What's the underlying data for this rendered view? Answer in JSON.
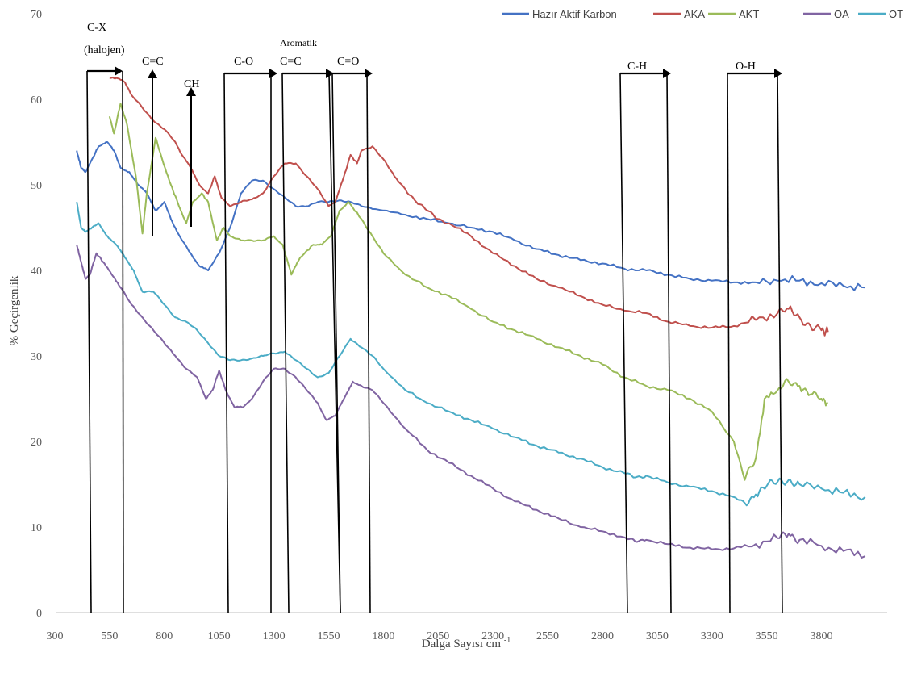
{
  "chart_data": {
    "type": "line",
    "xlabel": "Dalga Sayısı cm-1",
    "xlabel_main": "Dalga Sayısı cm",
    "xlabel_sup": "-1",
    "ylabel": "% Geçirgenlik",
    "xlim": [
      300,
      4100
    ],
    "ylim": [
      0,
      70
    ],
    "x_ticks": [
      300,
      550,
      800,
      1050,
      1300,
      1550,
      1800,
      2050,
      2300,
      2550,
      2800,
      3050,
      3300,
      3550,
      3800
    ],
    "y_ticks": [
      0,
      10,
      20,
      30,
      40,
      50,
      60,
      70
    ],
    "grid": false,
    "legend_position": "top-right",
    "series": [
      {
        "name": "Hazır Aktif Karbon",
        "color": "#4472C4",
        "points": [
          [
            400,
            54
          ],
          [
            420,
            52
          ],
          [
            440,
            51.5
          ],
          [
            470,
            53
          ],
          [
            500,
            54.5
          ],
          [
            540,
            55
          ],
          [
            570,
            54
          ],
          [
            600,
            52
          ],
          [
            640,
            51.5
          ],
          [
            680,
            50
          ],
          [
            720,
            49
          ],
          [
            760,
            47
          ],
          [
            800,
            48
          ],
          [
            830,
            46
          ],
          [
            870,
            44
          ],
          [
            920,
            42
          ],
          [
            960,
            40.5
          ],
          [
            1000,
            40
          ],
          [
            1050,
            42
          ],
          [
            1100,
            45
          ],
          [
            1150,
            49
          ],
          [
            1200,
            50.5
          ],
          [
            1250,
            50.5
          ],
          [
            1300,
            49.5
          ],
          [
            1350,
            48.5
          ],
          [
            1400,
            47.5
          ],
          [
            1450,
            47.5
          ],
          [
            1500,
            48
          ],
          [
            1550,
            48
          ],
          [
            1600,
            48.2
          ],
          [
            1650,
            48
          ],
          [
            1700,
            47.5
          ],
          [
            1800,
            47
          ],
          [
            1900,
            46.5
          ],
          [
            2000,
            46
          ],
          [
            2100,
            45.5
          ],
          [
            2200,
            45
          ],
          [
            2300,
            44.5
          ],
          [
            2400,
            43.5
          ],
          [
            2500,
            42.5
          ],
          [
            2600,
            41.8
          ],
          [
            2700,
            41.2
          ],
          [
            2800,
            40.8
          ],
          [
            2900,
            40.2
          ],
          [
            3000,
            40
          ],
          [
            3100,
            39.5
          ],
          [
            3200,
            39
          ],
          [
            3300,
            38.8
          ],
          [
            3400,
            38.6
          ],
          [
            3500,
            38.6
          ],
          [
            3600,
            38.8
          ],
          [
            3700,
            38.8
          ],
          [
            3800,
            38.5
          ],
          [
            3900,
            38.2
          ],
          [
            4000,
            38
          ]
        ]
      },
      {
        "name": "AKA",
        "color": "#C0504D",
        "points": [
          [
            550,
            62.5
          ],
          [
            580,
            62.5
          ],
          [
            620,
            62
          ],
          [
            650,
            60.5
          ],
          [
            700,
            59
          ],
          [
            750,
            57.5
          ],
          [
            800,
            56.5
          ],
          [
            850,
            55
          ],
          [
            880,
            53.5
          ],
          [
            920,
            52
          ],
          [
            960,
            50
          ],
          [
            1000,
            49
          ],
          [
            1030,
            51
          ],
          [
            1060,
            48.5
          ],
          [
            1100,
            47.5
          ],
          [
            1150,
            48
          ],
          [
            1200,
            48.3
          ],
          [
            1250,
            49
          ],
          [
            1300,
            51
          ],
          [
            1350,
            52.5
          ],
          [
            1400,
            52.5
          ],
          [
            1450,
            51
          ],
          [
            1500,
            49.5
          ],
          [
            1550,
            47.5
          ],
          [
            1580,
            48
          ],
          [
            1620,
            51
          ],
          [
            1650,
            53.5
          ],
          [
            1680,
            52.5
          ],
          [
            1700,
            54
          ],
          [
            1750,
            54.5
          ],
          [
            1800,
            53
          ],
          [
            1850,
            51
          ],
          [
            1900,
            49.5
          ],
          [
            1950,
            48
          ],
          [
            2000,
            47
          ],
          [
            2050,
            46
          ],
          [
            2100,
            45.5
          ],
          [
            2200,
            44
          ],
          [
            2300,
            42
          ],
          [
            2400,
            40.5
          ],
          [
            2500,
            39
          ],
          [
            2600,
            38
          ],
          [
            2700,
            37
          ],
          [
            2800,
            36
          ],
          [
            2900,
            35.3
          ],
          [
            3000,
            35
          ],
          [
            3100,
            34
          ],
          [
            3200,
            33.5
          ],
          [
            3300,
            33.3
          ],
          [
            3400,
            33.5
          ],
          [
            3500,
            34.2
          ],
          [
            3600,
            35
          ],
          [
            3650,
            35.5
          ],
          [
            3700,
            34.5
          ],
          [
            3750,
            33.5
          ],
          [
            3800,
            33
          ],
          [
            3830,
            32.8
          ]
        ]
      },
      {
        "name": "AKT",
        "color": "#9BBB59",
        "points": [
          [
            550,
            58
          ],
          [
            570,
            56
          ],
          [
            600,
            59.5
          ],
          [
            630,
            57
          ],
          [
            670,
            51
          ],
          [
            700,
            44.3
          ],
          [
            720,
            49
          ],
          [
            760,
            55.5
          ],
          [
            790,
            53
          ],
          [
            830,
            50
          ],
          [
            860,
            48
          ],
          [
            900,
            45.5
          ],
          [
            930,
            48
          ],
          [
            970,
            49
          ],
          [
            1000,
            48
          ],
          [
            1040,
            43.5
          ],
          [
            1070,
            45
          ],
          [
            1100,
            44
          ],
          [
            1150,
            43.5
          ],
          [
            1200,
            43.5
          ],
          [
            1250,
            43.5
          ],
          [
            1300,
            44
          ],
          [
            1340,
            43
          ],
          [
            1380,
            39.5
          ],
          [
            1420,
            41.5
          ],
          [
            1480,
            43
          ],
          [
            1520,
            43
          ],
          [
            1560,
            44
          ],
          [
            1600,
            47
          ],
          [
            1640,
            48
          ],
          [
            1700,
            46
          ],
          [
            1750,
            44
          ],
          [
            1800,
            42
          ],
          [
            1900,
            39.5
          ],
          [
            2000,
            38
          ],
          [
            2100,
            37
          ],
          [
            2200,
            35.5
          ],
          [
            2300,
            34
          ],
          [
            2400,
            33
          ],
          [
            2500,
            32
          ],
          [
            2600,
            31
          ],
          [
            2700,
            30
          ],
          [
            2800,
            29
          ],
          [
            2900,
            27.5
          ],
          [
            3000,
            26.5
          ],
          [
            3100,
            26
          ],
          [
            3200,
            25
          ],
          [
            3300,
            23.5
          ],
          [
            3400,
            20
          ],
          [
            3450,
            15.5
          ],
          [
            3500,
            18
          ],
          [
            3540,
            25
          ],
          [
            3600,
            26
          ],
          [
            3650,
            27
          ],
          [
            3700,
            26.5
          ],
          [
            3750,
            25.5
          ],
          [
            3800,
            25
          ],
          [
            3830,
            24.5
          ]
        ]
      },
      {
        "name": "OA",
        "color": "#8064A2",
        "points": [
          [
            400,
            43
          ],
          [
            420,
            41
          ],
          [
            440,
            39
          ],
          [
            460,
            39.5
          ],
          [
            490,
            42
          ],
          [
            520,
            41
          ],
          [
            560,
            39.5
          ],
          [
            600,
            38
          ],
          [
            650,
            36
          ],
          [
            700,
            34.5
          ],
          [
            750,
            33
          ],
          [
            800,
            31.5
          ],
          [
            850,
            30
          ],
          [
            900,
            28.5
          ],
          [
            950,
            27.5
          ],
          [
            990,
            25
          ],
          [
            1020,
            26
          ],
          [
            1050,
            28.3
          ],
          [
            1080,
            26
          ],
          [
            1120,
            24
          ],
          [
            1160,
            24
          ],
          [
            1200,
            25
          ],
          [
            1250,
            27
          ],
          [
            1300,
            28.5
          ],
          [
            1350,
            28.5
          ],
          [
            1400,
            27.5
          ],
          [
            1450,
            26
          ],
          [
            1500,
            24.5
          ],
          [
            1540,
            22.5
          ],
          [
            1580,
            23
          ],
          [
            1620,
            25
          ],
          [
            1660,
            27
          ],
          [
            1700,
            26.5
          ],
          [
            1750,
            26
          ],
          [
            1800,
            24.5
          ],
          [
            1900,
            21.5
          ],
          [
            2000,
            19
          ],
          [
            2100,
            17.5
          ],
          [
            2200,
            16
          ],
          [
            2300,
            14.5
          ],
          [
            2400,
            13
          ],
          [
            2500,
            12
          ],
          [
            2600,
            11
          ],
          [
            2700,
            10
          ],
          [
            2800,
            9.5
          ],
          [
            2900,
            8.8
          ],
          [
            2950,
            8.3
          ],
          [
            3000,
            8.5
          ],
          [
            3100,
            8
          ],
          [
            3200,
            7.6
          ],
          [
            3300,
            7.4
          ],
          [
            3400,
            7.5
          ],
          [
            3500,
            8
          ],
          [
            3600,
            8.7
          ],
          [
            3650,
            9.2
          ],
          [
            3700,
            8.5
          ],
          [
            3800,
            7.8
          ],
          [
            3900,
            7.2
          ],
          [
            4000,
            6.6
          ]
        ]
      },
      {
        "name": "OT",
        "color": "#4BACC6",
        "points": [
          [
            400,
            48
          ],
          [
            420,
            45
          ],
          [
            440,
            44.5
          ],
          [
            470,
            45
          ],
          [
            500,
            45.5
          ],
          [
            540,
            44
          ],
          [
            580,
            43
          ],
          [
            620,
            41.5
          ],
          [
            660,
            40
          ],
          [
            700,
            37.5
          ],
          [
            750,
            37.5
          ],
          [
            800,
            36
          ],
          [
            850,
            34.5
          ],
          [
            900,
            34
          ],
          [
            950,
            33
          ],
          [
            1000,
            31.5
          ],
          [
            1050,
            30
          ],
          [
            1100,
            29.5
          ],
          [
            1150,
            29.5
          ],
          [
            1200,
            29.7
          ],
          [
            1250,
            30
          ],
          [
            1300,
            30.3
          ],
          [
            1350,
            30.5
          ],
          [
            1400,
            29.5
          ],
          [
            1450,
            28.5
          ],
          [
            1500,
            27.5
          ],
          [
            1550,
            28
          ],
          [
            1600,
            30
          ],
          [
            1650,
            32
          ],
          [
            1700,
            31
          ],
          [
            1750,
            30
          ],
          [
            1800,
            28.5
          ],
          [
            1900,
            26
          ],
          [
            2000,
            24.5
          ],
          [
            2100,
            23.5
          ],
          [
            2200,
            22.5
          ],
          [
            2300,
            21.5
          ],
          [
            2400,
            20.5
          ],
          [
            2500,
            19.5
          ],
          [
            2600,
            18.7
          ],
          [
            2700,
            18
          ],
          [
            2800,
            17
          ],
          [
            2900,
            16.3
          ],
          [
            2950,
            15.8
          ],
          [
            3000,
            16
          ],
          [
            3100,
            15.2
          ],
          [
            3200,
            14.7
          ],
          [
            3300,
            14.2
          ],
          [
            3400,
            13.5
          ],
          [
            3450,
            12.8
          ],
          [
            3500,
            13.8
          ],
          [
            3550,
            14.8
          ],
          [
            3600,
            15.3
          ],
          [
            3650,
            15.5
          ],
          [
            3700,
            15
          ],
          [
            3800,
            14.5
          ],
          [
            3900,
            14
          ],
          [
            4000,
            13.5
          ]
        ]
      }
    ],
    "annotations": [
      {
        "label": "C-X",
        "sub_label": "(halojen)",
        "arrow": "bracket"
      },
      {
        "label": "C=C",
        "arrow": "up"
      },
      {
        "label": "CH",
        "arrow": "up"
      },
      {
        "label": "C-O",
        "arrow": "bracket"
      },
      {
        "label": "Aromatik",
        "sub_label": "C=C",
        "arrow": "bracket"
      },
      {
        "label": "C=O",
        "arrow": "bracket"
      },
      {
        "label": "C-H",
        "arrow": "bracket"
      },
      {
        "label": "O-H",
        "arrow": "bracket"
      }
    ]
  }
}
